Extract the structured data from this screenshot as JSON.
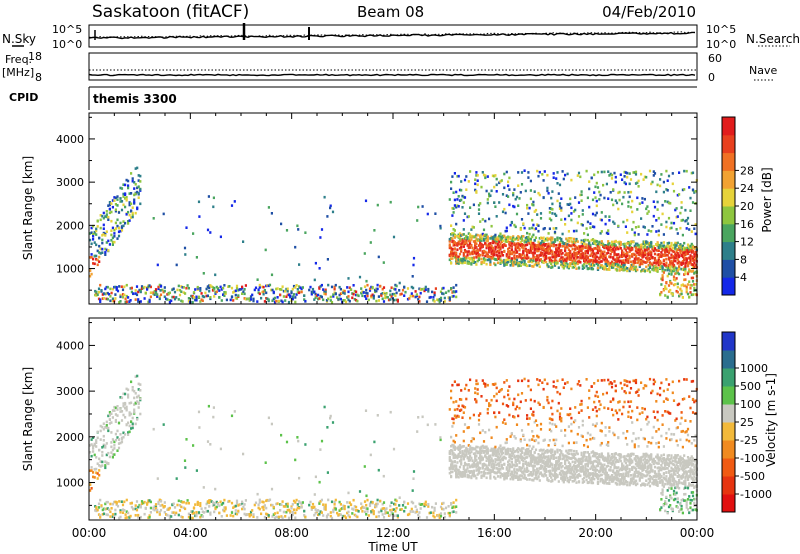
{
  "header": {
    "station": "Saskatoon (fitACF)",
    "beam": "Beam 08",
    "date": "04/Feb/2010"
  },
  "top_panels": {
    "nsky_label": "N.Sky",
    "nsky_ticks": [
      "10^5",
      "10^0"
    ],
    "nsearch_label": "N.Search",
    "nsearch_ticks": [
      "10^5",
      "10^0"
    ],
    "freq_label": "Freq.",
    "freq_unit": "[MHz]",
    "freq_ticks": [
      18,
      8
    ],
    "nave_label": "Nave",
    "nave_ticks": [
      60,
      0
    ],
    "cpid_label": "CPID",
    "cpid_value": "themis 3300"
  },
  "chart_data": [
    {
      "type": "heatmap",
      "panel": "power",
      "ylabel": "Slant Range [km]",
      "ylim": [
        180,
        4600
      ],
      "yticks": [
        1000,
        2000,
        3000,
        4000
      ],
      "xlim": [
        "00:00",
        "24:00"
      ],
      "colorbar": {
        "label": "Power [dB]",
        "ticks": [
          4,
          8,
          12,
          16,
          20,
          24,
          28
        ],
        "colors": [
          "#1428e8",
          "#1f4fa5",
          "#2e7f8a",
          "#4aa55f",
          "#8ec63f",
          "#e6d33a",
          "#f2a232",
          "#f07124",
          "#e8401e",
          "#e11c1c"
        ]
      }
    },
    {
      "type": "heatmap",
      "panel": "velocity",
      "ylabel": "Slant Range [km]",
      "ylim": [
        180,
        4600
      ],
      "yticks": [
        1000,
        2000,
        3000,
        4000
      ],
      "xlim": [
        "00:00",
        "24:00"
      ],
      "xticks": [
        "00:00",
        "04:00",
        "08:00",
        "12:00",
        "16:00",
        "20:00",
        "00:00"
      ],
      "xlabel": "Time UT",
      "colorbar": {
        "label": "Velocity [m s-1]",
        "ticks": [
          "1000",
          "500",
          "100",
          "25",
          "-25",
          "-100",
          "-500",
          "-1000"
        ],
        "colors": [
          "#2136c8",
          "#2a6d8e",
          "#3aa16f",
          "#5cc24a",
          "#c8c8c0",
          "#f2b93a",
          "#f08a1f",
          "#f05a12",
          "#e63410",
          "#e11010"
        ]
      }
    }
  ]
}
